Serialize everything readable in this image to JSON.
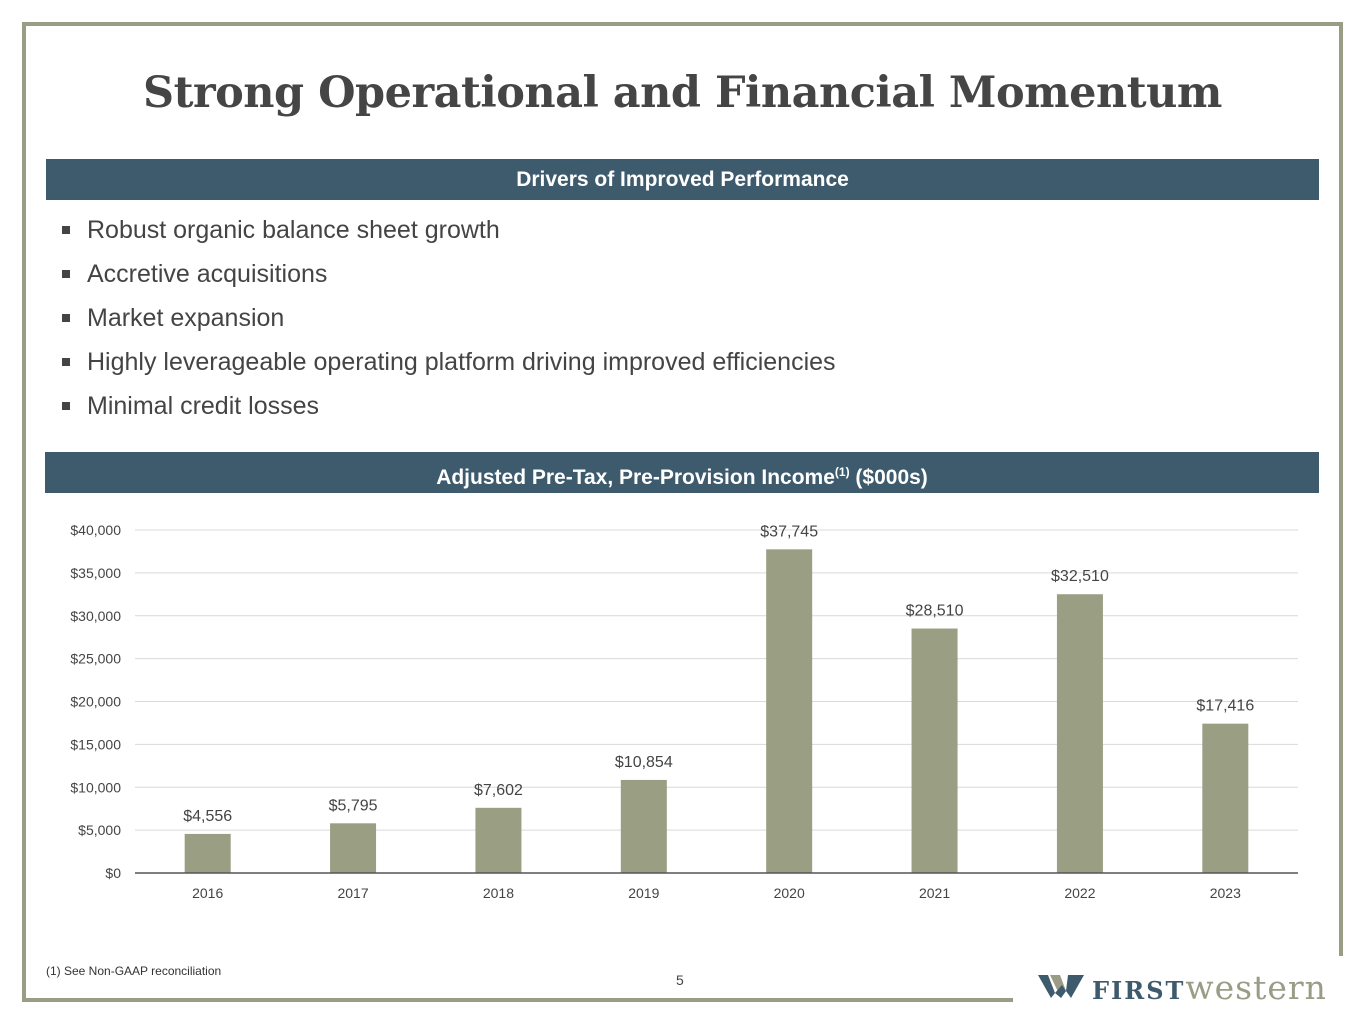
{
  "title": "Strong Operational and Financial Momentum",
  "drivers": {
    "header": "Drivers of Improved Performance",
    "items": [
      "Robust organic balance sheet growth",
      "Accretive acquisitions",
      "Market expansion",
      "Highly leverageable operating platform driving improved efficiencies",
      "Minimal credit losses"
    ]
  },
  "chart_header": {
    "text": "Adjusted Pre-Tax, Pre-Provision Income",
    "sup": "(1)",
    "suffix": " ($000s)"
  },
  "chart_data": {
    "type": "bar",
    "title": "Adjusted Pre-Tax, Pre-Provision Income(1) ($000s)",
    "categories": [
      "2016",
      "2017",
      "2018",
      "2019",
      "2020",
      "2021",
      "2022",
      "2023"
    ],
    "values": [
      4556,
      5795,
      7602,
      10854,
      37745,
      28510,
      32510,
      17416
    ],
    "data_labels": [
      "$4,556",
      "$5,795",
      "$7,602",
      "$10,854",
      "$37,745",
      "$28,510",
      "$32,510",
      "$17,416"
    ],
    "ylim": [
      0,
      40000
    ],
    "yticks": [
      0,
      5000,
      10000,
      15000,
      20000,
      25000,
      30000,
      35000,
      40000
    ],
    "ytick_labels": [
      "$0",
      "$5,000",
      "$10,000",
      "$15,000",
      "$20,000",
      "$25,000",
      "$30,000",
      "$35,000",
      "$40,000"
    ],
    "grid": true,
    "bar_color": "#9a9f84"
  },
  "footnote": "(1)  See Non-GAAP reconciliation",
  "page_number": "5",
  "logo": {
    "first": "FIRST",
    "western": "western"
  },
  "colors": {
    "band": "#3e5b6e",
    "frame": "#9a9c86",
    "bar": "#9a9f84"
  }
}
